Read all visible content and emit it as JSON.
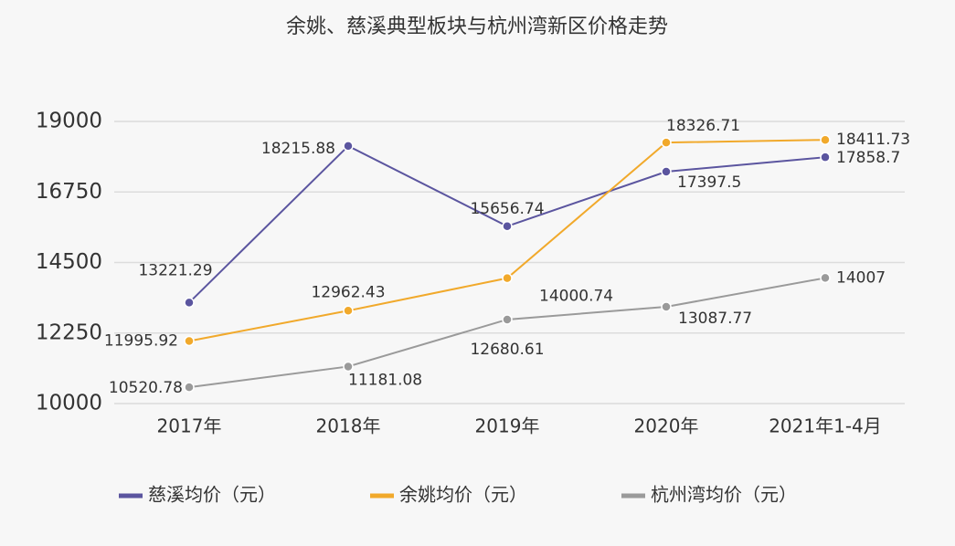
{
  "chart_data": {
    "type": "line",
    "title": "余姚、慈溪典型板块与杭州湾新区价格走势",
    "categories": [
      "2017年",
      "2018年",
      "2019年",
      "2020年",
      "2021年1-4月"
    ],
    "series": [
      {
        "name": "慈溪均价（元）",
        "color": "#5b559f",
        "values": [
          13221.29,
          18215.88,
          15656.74,
          17397.5,
          17858.7
        ]
      },
      {
        "name": "余姚均价（元）",
        "color": "#f1a92b",
        "values": [
          11995.92,
          12962.43,
          14000.74,
          18326.71,
          18411.73
        ]
      },
      {
        "name": "杭州湾均价（元）",
        "color": "#9a9a9a",
        "values": [
          10520.78,
          11181.08,
          12680.61,
          13087.77,
          14007
        ]
      }
    ],
    "ylim": [
      10000,
      19000
    ],
    "yticks": [
      10000,
      12250,
      14500,
      16750,
      19000
    ],
    "grid": true,
    "legend": "bottom"
  }
}
